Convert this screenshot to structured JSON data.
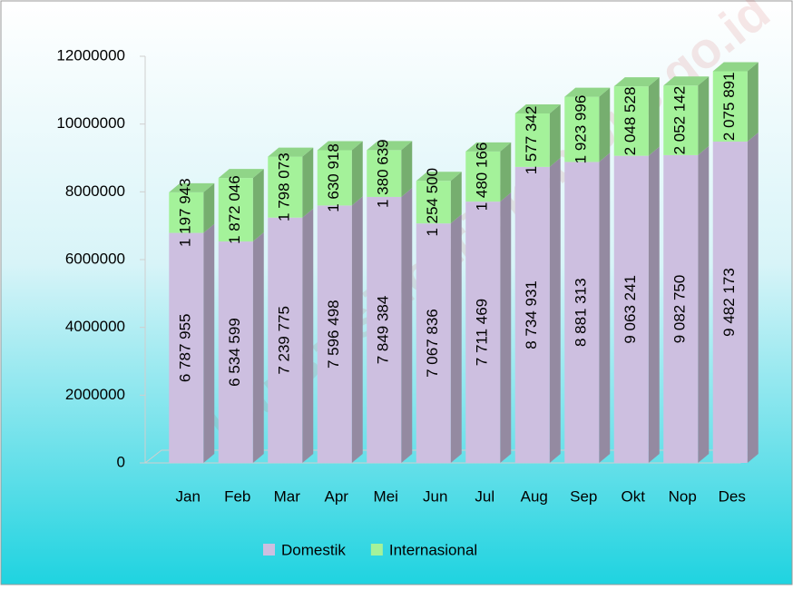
{
  "chart_data": {
    "type": "bar",
    "stacked": true,
    "categories": [
      "Jan",
      "Feb",
      "Mar",
      "Apr",
      "Mei",
      "Jun",
      "Jul",
      "Aug",
      "Sep",
      "Okt",
      "Nop",
      "Des"
    ],
    "series": [
      {
        "name": "Domestik",
        "color": "#cdbfe0",
        "values": [
          6787955,
          6534599,
          7239775,
          7596498,
          7849384,
          7067836,
          7711469,
          8734931,
          8881313,
          9063241,
          9082750,
          9482173
        ],
        "value_labels": [
          "6 787 955",
          "6 534 599",
          "7 239 775",
          "7 596 498",
          "7 849 384",
          "7 067 836",
          "7 711 469",
          "8 734 931",
          "8 881 313",
          "9 063 241",
          "9 082 750",
          "9 482 173"
        ]
      },
      {
        "name": "Internasional",
        "color": "#a4f29a",
        "values": [
          1197943,
          1872046,
          1798073,
          1630918,
          1380639,
          1254500,
          1480166,
          1577342,
          1923996,
          2048528,
          2052142,
          2075891
        ],
        "value_labels": [
          "1 197 943",
          "1 872 046",
          "1 798 073",
          "1 630 918",
          "1 380 639",
          "1 254 500",
          "1 480 166",
          "1 577 342",
          "1 923 996",
          "2 048 528",
          "2 052 142",
          "2 075 891"
        ]
      }
    ],
    "ylim": [
      0,
      12000000
    ],
    "yticks": [
      0,
      2000000,
      4000000,
      6000000,
      8000000,
      10000000,
      12000000
    ],
    "legend": "bottom",
    "watermark": "https://sidoarjokab.bps.go.id"
  }
}
